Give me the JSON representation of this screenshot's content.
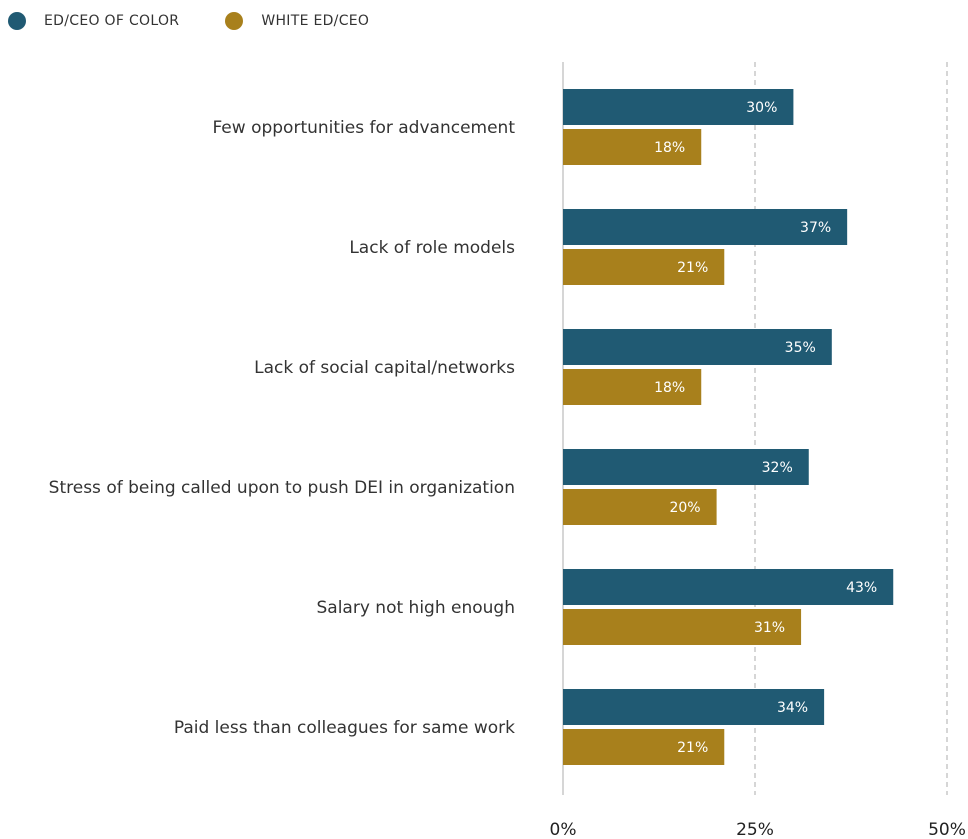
{
  "chart_data": {
    "type": "bar",
    "orientation": "horizontal",
    "categories": [
      "Few opportunities for advancement",
      "Lack of role models",
      "Lack of social capital/networks",
      "Stress of being called upon to push DEI in organization",
      "Salary not high enough",
      "Paid less than colleagues for same work"
    ],
    "series": [
      {
        "name": "ED/CEO OF COLOR",
        "color": "#205a73",
        "values": [
          30,
          37,
          35,
          32,
          43,
          34
        ]
      },
      {
        "name": "WHITE ED/CEO",
        "color": "#a8801c",
        "values": [
          18,
          21,
          18,
          20,
          31,
          21
        ]
      }
    ],
    "value_labels": [
      [
        "30%",
        "37%",
        "35%",
        "32%",
        "43%",
        "34%"
      ],
      [
        "18%",
        "21%",
        "18%",
        "20%",
        "31%",
        "21%"
      ]
    ],
    "xlim": [
      0,
      50
    ],
    "ticks": [
      0,
      25,
      50
    ],
    "tick_labels": [
      "0%",
      "25%",
      "50%"
    ],
    "grid": "vertical dashed",
    "legend_position": "top-left"
  }
}
